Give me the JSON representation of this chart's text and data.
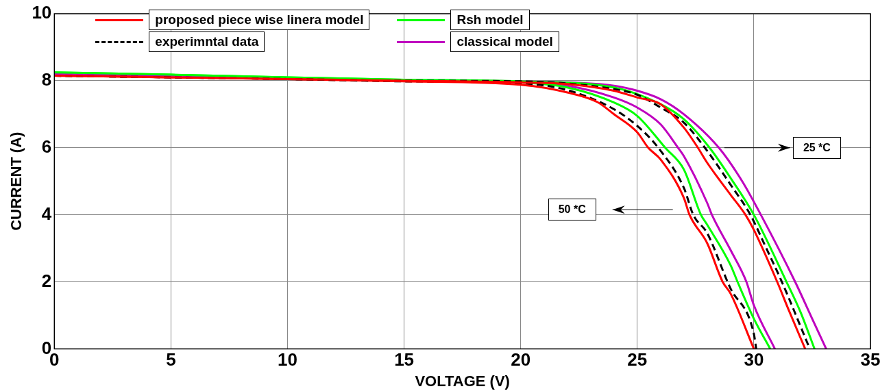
{
  "chart_data": {
    "type": "line",
    "xlabel": "VOLTAGE (V)",
    "ylabel": "CURRENT (A)",
    "xlim": [
      0,
      35
    ],
    "xticks": [
      0,
      5,
      10,
      15,
      20,
      25,
      30,
      35
    ],
    "ylim": [
      0,
      10
    ],
    "yticks": [
      0,
      2,
      4,
      6,
      8,
      10
    ],
    "grid": true,
    "legend": "top",
    "marker": "none",
    "series": [
      {
        "name": "proposed piece wise linera model",
        "color": "#ff0000",
        "line_style": "solid",
        "x": [
          0,
          5,
          10,
          15,
          20,
          22,
          24,
          25,
          26,
          27,
          27.6,
          28,
          29,
          29.64,
          30,
          31,
          31.5,
          32.2
        ],
        "values": [
          8.15,
          8.1,
          8.05,
          8.0,
          7.95,
          7.9,
          7.7,
          7.5,
          7.3,
          6.6,
          6,
          5.55,
          4.6,
          4,
          3.55,
          2,
          1.15,
          0
        ]
      },
      {
        "name": "experimntal data",
        "color": "#000000",
        "line_style": "dashed",
        "x": [
          0,
          5,
          10,
          15,
          20,
          24,
          25,
          26,
          27,
          27.9,
          29,
          29.85,
          30.5,
          31.2,
          32.4
        ],
        "values": [
          8.15,
          8.1,
          8.05,
          8.0,
          7.98,
          7.75,
          7.58,
          7.2,
          6.75,
          6,
          4.9,
          4,
          3.05,
          2,
          0
        ]
      },
      {
        "name": "Rsh model",
        "color": "#00ff00",
        "line_style": "solid",
        "x": [
          0,
          5,
          10,
          15,
          20,
          24,
          26,
          27,
          28.1,
          29,
          30,
          31.4,
          32,
          32.6
        ],
        "values": [
          8.25,
          8.18,
          8.1,
          8.03,
          7.98,
          7.8,
          7.3,
          6.85,
          6,
          5.1,
          4,
          2,
          1.1,
          0
        ]
      },
      {
        "name": "classical model",
        "color": "#bf00bf",
        "line_style": "solid",
        "x": [
          0,
          5,
          10,
          15,
          20,
          24,
          25,
          26,
          27,
          28.5,
          29.5,
          30.3,
          31.77,
          32.5,
          33.1
        ],
        "values": [
          8.2,
          8.15,
          8.08,
          8.02,
          7.98,
          7.85,
          7.7,
          7.45,
          7.0,
          6,
          5,
          4,
          2,
          0.9,
          0
        ]
      },
      {
        "color": "#ff0000",
        "line_style": "solid",
        "x": [
          0,
          5,
          10,
          15,
          20,
          22,
          23.3,
          24,
          25,
          25.47,
          26,
          27,
          27.24,
          28,
          28.66,
          29,
          30
        ],
        "values": [
          8.15,
          8.1,
          8.05,
          7.98,
          7.88,
          7.65,
          7.36,
          7.0,
          6.46,
          6,
          5.65,
          4.5,
          4,
          3.15,
          2,
          1.65,
          0
        ]
      },
      {
        "color": "#000000",
        "line_style": "dashed",
        "x": [
          0,
          5,
          10,
          15,
          20,
          22,
          24,
          25,
          25.9,
          27,
          27.4,
          28,
          28.87,
          29,
          30,
          30.1
        ],
        "values": [
          8.15,
          8.1,
          8.05,
          7.98,
          7.92,
          7.72,
          7.15,
          6.65,
          6,
          4.8,
          4,
          3.45,
          2,
          1.8,
          0.45,
          0
        ]
      },
      {
        "color": "#00ff00",
        "line_style": "solid",
        "x": [
          0,
          5,
          10,
          15,
          20,
          22,
          24,
          25,
          26.2,
          27,
          27.73,
          28,
          29,
          29.3,
          30,
          30.7
        ],
        "values": [
          8.25,
          8.18,
          8.1,
          8.03,
          7.95,
          7.8,
          7.35,
          6.95,
          6,
          5.35,
          4,
          3.7,
          2.5,
          2,
          0.9,
          0
        ]
      },
      {
        "color": "#bf00bf",
        "line_style": "solid",
        "x": [
          0,
          5,
          10,
          15,
          20,
          22,
          24,
          25,
          26,
          26.75,
          27,
          28,
          28.2,
          29,
          29.68,
          30,
          30.9
        ],
        "values": [
          8.2,
          8.15,
          8.08,
          8.02,
          7.95,
          7.85,
          7.5,
          7.2,
          6.7,
          6,
          5.75,
          4.35,
          4,
          2.95,
          2,
          1.3,
          0
        ]
      }
    ],
    "annotations": [
      "25 *C",
      "50 *C"
    ]
  }
}
